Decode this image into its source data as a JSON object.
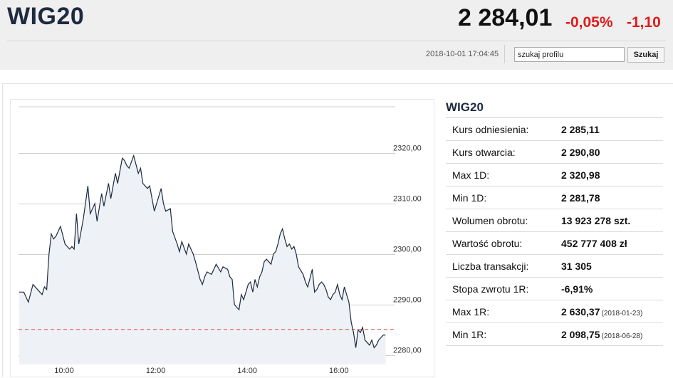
{
  "header": {
    "ticker": "WIG20",
    "price": "2 284,01",
    "change_pct": "-0,05%",
    "change_abs": "-1,10",
    "timestamp": "2018-10-01 17:04:45",
    "search_value": "szukaj profilu",
    "search_button": "Szukaj",
    "change_color": "#e01b1b"
  },
  "stats": {
    "title": "WIG20",
    "rows": [
      {
        "label": "Kurs odniesienia:",
        "value": "2 285,11",
        "date": ""
      },
      {
        "label": "Kurs otwarcia:",
        "value": "2 290,80",
        "date": ""
      },
      {
        "label": "Max 1D:",
        "value": "2 320,98",
        "date": ""
      },
      {
        "label": "Min 1D:",
        "value": "2 281,78",
        "date": ""
      },
      {
        "label": "Wolumen obrotu:",
        "value": "13 923 278 szt.",
        "date": ""
      },
      {
        "label": "Wartość obrotu:",
        "value": "452 777 408 zł",
        "date": ""
      },
      {
        "label": "Liczba transakcji:",
        "value": "31 305",
        "date": ""
      },
      {
        "label": "Stopa zwrotu 1R:",
        "value": "-6,91%",
        "date": ""
      },
      {
        "label": "Max 1R:",
        "value": "2 630,37",
        "date": "(2018-01-23)"
      },
      {
        "label": "Min 1R:",
        "value": "2 098,75",
        "date": "(2018-06-28)"
      }
    ]
  },
  "chart_data": {
    "type": "line",
    "grid": true,
    "line_color": "#1d2a3f",
    "fill_color": "#eef1f5",
    "reference_color": "#e85a5a",
    "reference_value": 2285.11,
    "ylim": [
      2278.5,
      2330
    ],
    "y_ticks": [
      2280,
      2290,
      2300,
      2310,
      2320
    ],
    "y_tick_labels": [
      "2280,00",
      "2290,00",
      "2300,00",
      "2310,00",
      "2320,00"
    ],
    "xlim": [
      9.2,
      17.2
    ],
    "x_ticks": [
      10,
      12,
      14,
      16
    ],
    "x_tick_labels": [
      "10:00",
      "12:00",
      "14:00",
      "16:00"
    ],
    "x": [
      9.02,
      9.12,
      9.22,
      9.32,
      9.42,
      9.52,
      9.57,
      9.62,
      9.67,
      9.72,
      9.77,
      9.82,
      9.92,
      10.02,
      10.12,
      10.17,
      10.22,
      10.27,
      10.32,
      10.42,
      10.52,
      10.57,
      10.67,
      10.72,
      10.82,
      10.87,
      10.97,
      11.02,
      11.12,
      11.17,
      11.27,
      11.32,
      11.37,
      11.42,
      11.52,
      11.62,
      11.67,
      11.72,
      11.82,
      11.87,
      11.97,
      12.02,
      12.12,
      12.17,
      12.22,
      12.32,
      12.37,
      12.47,
      12.52,
      12.57,
      12.67,
      12.72,
      12.82,
      12.87,
      12.97,
      13.02,
      13.07,
      13.12,
      13.22,
      13.27,
      13.32,
      13.42,
      13.47,
      13.57,
      13.62,
      13.67,
      13.72,
      13.77,
      13.82,
      13.87,
      13.92,
      13.97,
      14.02,
      14.07,
      14.12,
      14.17,
      14.22,
      14.27,
      14.32,
      14.37,
      14.42,
      14.47,
      14.52,
      14.57,
      14.62,
      14.67,
      14.72,
      14.77,
      14.82,
      14.87,
      14.92,
      14.97,
      15.02,
      15.07,
      15.12,
      15.22,
      15.27,
      15.32,
      15.42,
      15.47,
      15.52,
      15.57,
      15.62,
      15.67,
      15.72,
      15.77,
      15.82,
      15.87,
      15.92,
      15.97,
      16.02,
      16.07,
      16.12,
      16.17,
      16.22,
      16.27,
      16.32,
      16.37,
      16.42,
      16.47,
      16.52,
      16.57,
      16.62,
      16.67,
      16.72,
      16.77,
      16.82,
      16.87,
      16.92,
      16.97,
      17.02
    ],
    "y": [
      2292.5,
      2292.5,
      2290.5,
      2294.0,
      2293.0,
      2292.0,
      2293.5,
      2293.0,
      2300.0,
      2304.0,
      2303.0,
      2303.5,
      2305.5,
      2302.0,
      2301.0,
      2301.5,
      2301.0,
      2308.0,
      2302.0,
      2307.0,
      2313.5,
      2308.0,
      2310.0,
      2306.5,
      2312.0,
      2309.5,
      2314.0,
      2311.0,
      2316.0,
      2314.0,
      2319.0,
      2318.5,
      2317.5,
      2317.0,
      2319.5,
      2316.0,
      2317.0,
      2314.0,
      2313.0,
      2313.5,
      2308.5,
      2310.0,
      2313.0,
      2310.0,
      2308.5,
      2309.0,
      2304.5,
      2302.0,
      2300.5,
      2302.5,
      2300.0,
      2302.0,
      2300.0,
      2298.5,
      2295.0,
      2294.0,
      2295.5,
      2296.5,
      2296.0,
      2297.0,
      2298.0,
      2296.5,
      2297.5,
      2297.0,
      2295.5,
      2295.0,
      2290.0,
      2289.5,
      2289.0,
      2292.0,
      2291.0,
      2292.5,
      2294.0,
      2294.5,
      2292.5,
      2295.0,
      2293.5,
      2295.5,
      2296.5,
      2298.5,
      2299.0,
      2298.5,
      2298.0,
      2300.0,
      2300.5,
      2302.0,
      2304.0,
      2305.0,
      2303.0,
      2301.5,
      2302.0,
      2301.0,
      2301.5,
      2300.0,
      2297.5,
      2296.0,
      2294.5,
      2293.5,
      2297.0,
      2292.5,
      2293.0,
      2294.0,
      2294.5,
      2294.0,
      2293.0,
      2291.5,
      2291.0,
      2292.0,
      2292.5,
      2294.0,
      2292.0,
      2291.0,
      2293.5,
      2292.0,
      2290.5,
      2286.5,
      2284.5,
      2281.5,
      2285.0,
      2284.5,
      2285.5,
      2283.0,
      2282.5,
      2282.0,
      2283.0,
      2281.5,
      2282.0,
      2283.0,
      2283.5,
      2284.0,
      2284.0
    ]
  }
}
